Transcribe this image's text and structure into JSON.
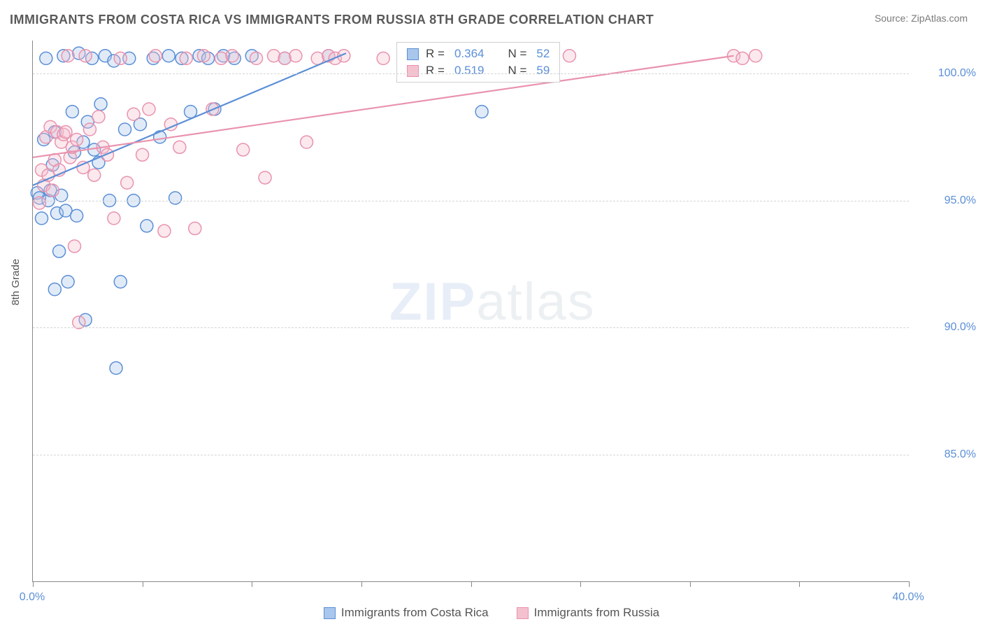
{
  "title": "IMMIGRANTS FROM COSTA RICA VS IMMIGRANTS FROM RUSSIA 8TH GRADE CORRELATION CHART",
  "source_label": "Source: ZipAtlas.com",
  "ylabel": "8th Grade",
  "watermark": {
    "zip": "ZIP",
    "atlas": "atlas"
  },
  "chart": {
    "type": "scatter",
    "xlim": [
      0,
      40
    ],
    "ylim": [
      80,
      101.3
    ],
    "xticks": [
      0,
      5,
      10,
      15,
      20,
      25,
      30,
      35,
      40
    ],
    "xtick_labels_shown": {
      "0": "0.0%",
      "40": "40.0%"
    },
    "yticks": [
      85,
      90,
      95,
      100
    ],
    "ytick_labels": [
      "85.0%",
      "90.0%",
      "95.0%",
      "100.0%"
    ],
    "background_color": "#ffffff",
    "grid_color": "#d5d5d5",
    "axis_color": "#888888",
    "label_color": "#5b8fd6",
    "label_fontsize": 16,
    "marker_radius": 9,
    "marker_fill_opacity": 0.35,
    "marker_stroke_width": 1.5,
    "line_width": 2.2,
    "series": [
      {
        "name": "Immigrants from Costa Rica",
        "color_fill": "#a9c6ec",
        "color_stroke": "#5b8fd6",
        "R": 0.364,
        "N": 52,
        "trend": {
          "x1": 0,
          "y1": 95.6,
          "x2": 14.3,
          "y2": 100.8
        },
        "points": [
          [
            0.2,
            95.3
          ],
          [
            0.3,
            95.1
          ],
          [
            0.4,
            94.3
          ],
          [
            0.5,
            97.4
          ],
          [
            0.6,
            100.6
          ],
          [
            0.7,
            95.0
          ],
          [
            0.8,
            95.4
          ],
          [
            0.9,
            96.4
          ],
          [
            1.0,
            91.5
          ],
          [
            1.0,
            97.7
          ],
          [
            1.1,
            94.5
          ],
          [
            1.2,
            93.0
          ],
          [
            1.3,
            95.2
          ],
          [
            1.4,
            100.7
          ],
          [
            1.5,
            94.6
          ],
          [
            1.6,
            91.8
          ],
          [
            1.8,
            98.5
          ],
          [
            1.9,
            96.9
          ],
          [
            2.0,
            94.4
          ],
          [
            2.1,
            100.8
          ],
          [
            2.3,
            97.3
          ],
          [
            2.4,
            90.3
          ],
          [
            2.5,
            98.1
          ],
          [
            2.7,
            100.6
          ],
          [
            2.8,
            97.0
          ],
          [
            3.0,
            96.5
          ],
          [
            3.1,
            98.8
          ],
          [
            3.3,
            100.7
          ],
          [
            3.5,
            95.0
          ],
          [
            3.7,
            100.5
          ],
          [
            3.8,
            88.4
          ],
          [
            4.0,
            91.8
          ],
          [
            4.2,
            97.8
          ],
          [
            4.4,
            100.6
          ],
          [
            4.6,
            95.0
          ],
          [
            4.9,
            98.0
          ],
          [
            5.2,
            94.0
          ],
          [
            5.5,
            100.6
          ],
          [
            5.8,
            97.5
          ],
          [
            6.2,
            100.7
          ],
          [
            6.5,
            95.1
          ],
          [
            6.8,
            100.6
          ],
          [
            7.2,
            98.5
          ],
          [
            7.6,
            100.7
          ],
          [
            8.0,
            100.6
          ],
          [
            8.3,
            98.6
          ],
          [
            8.7,
            100.7
          ],
          [
            9.2,
            100.6
          ],
          [
            10.0,
            100.7
          ],
          [
            11.5,
            100.6
          ],
          [
            13.5,
            100.7
          ],
          [
            20.5,
            98.5
          ]
        ]
      },
      {
        "name": "Immigrants from Russia",
        "color_fill": "#f4c1cf",
        "color_stroke": "#e993ae",
        "R": 0.519,
        "N": 59,
        "trend": {
          "x1": 0,
          "y1": 96.7,
          "x2": 32.0,
          "y2": 100.7
        },
        "points": [
          [
            0.3,
            94.9
          ],
          [
            0.4,
            96.2
          ],
          [
            0.5,
            95.6
          ],
          [
            0.6,
            97.5
          ],
          [
            0.7,
            96.0
          ],
          [
            0.8,
            97.9
          ],
          [
            0.9,
            95.4
          ],
          [
            1.0,
            96.6
          ],
          [
            1.1,
            97.7
          ],
          [
            1.2,
            96.2
          ],
          [
            1.3,
            97.3
          ],
          [
            1.4,
            97.6
          ],
          [
            1.5,
            97.7
          ],
          [
            1.6,
            100.7
          ],
          [
            1.7,
            96.7
          ],
          [
            1.8,
            97.1
          ],
          [
            1.9,
            93.2
          ],
          [
            2.0,
            97.4
          ],
          [
            2.1,
            90.2
          ],
          [
            2.3,
            96.3
          ],
          [
            2.4,
            100.7
          ],
          [
            2.6,
            97.8
          ],
          [
            2.8,
            96.0
          ],
          [
            3.0,
            98.3
          ],
          [
            3.2,
            97.1
          ],
          [
            3.4,
            96.8
          ],
          [
            3.7,
            94.3
          ],
          [
            4.0,
            100.6
          ],
          [
            4.3,
            95.7
          ],
          [
            4.6,
            98.4
          ],
          [
            5.0,
            96.8
          ],
          [
            5.3,
            98.6
          ],
          [
            5.6,
            100.7
          ],
          [
            6.0,
            93.8
          ],
          [
            6.3,
            98.0
          ],
          [
            6.7,
            97.1
          ],
          [
            7.0,
            100.6
          ],
          [
            7.4,
            93.9
          ],
          [
            7.8,
            100.7
          ],
          [
            8.2,
            98.6
          ],
          [
            8.6,
            100.6
          ],
          [
            9.1,
            100.7
          ],
          [
            9.6,
            97.0
          ],
          [
            10.2,
            100.6
          ],
          [
            10.6,
            95.9
          ],
          [
            11.0,
            100.7
          ],
          [
            11.5,
            100.6
          ],
          [
            12.0,
            100.7
          ],
          [
            12.5,
            97.3
          ],
          [
            13.0,
            100.6
          ],
          [
            13.5,
            100.7
          ],
          [
            13.8,
            100.6
          ],
          [
            14.2,
            100.7
          ],
          [
            16.0,
            100.6
          ],
          [
            20.5,
            100.6
          ],
          [
            24.5,
            100.7
          ],
          [
            32.0,
            100.7
          ],
          [
            32.4,
            100.6
          ],
          [
            33.0,
            100.7
          ]
        ]
      }
    ]
  },
  "stats_box": {
    "rows": [
      {
        "swatch_fill": "#a9c6ec",
        "swatch_stroke": "#5b8fd6",
        "r_label": "R =",
        "r_val": "0.364",
        "n_label": "N =",
        "n_val": "52"
      },
      {
        "swatch_fill": "#f4c1cf",
        "swatch_stroke": "#e993ae",
        "r_label": "R =",
        "r_val": "0.519",
        "n_label": "N =",
        "n_val": "59"
      }
    ]
  },
  "legend": {
    "items": [
      {
        "swatch_fill": "#a9c6ec",
        "swatch_stroke": "#5b8fd6",
        "label": "Immigrants from Costa Rica"
      },
      {
        "swatch_fill": "#f4c1cf",
        "swatch_stroke": "#e993ae",
        "label": "Immigrants from Russia"
      }
    ]
  }
}
